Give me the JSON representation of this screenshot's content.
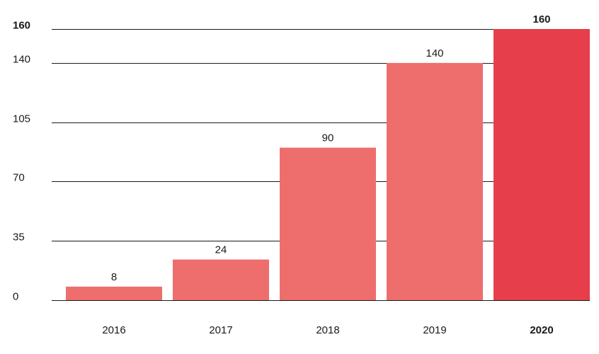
{
  "chart_data": {
    "type": "bar",
    "categories": [
      "2016",
      "2017",
      "2018",
      "2019",
      "2020"
    ],
    "values": [
      8,
      24,
      90,
      140,
      160
    ],
    "value_labels": [
      "8",
      "24",
      "90",
      "140",
      "160"
    ],
    "y_ticks": [
      0,
      35,
      70,
      105,
      140,
      160
    ],
    "y_tick_labels": [
      "0",
      "35",
      "70",
      "105",
      "140",
      "160"
    ],
    "ylim": [
      0,
      160
    ],
    "grid": true,
    "highlight_index": 4,
    "colors": {
      "bar": "#ee6e6e",
      "highlight": "#e63e4a",
      "text": "#1a1a1a"
    }
  }
}
